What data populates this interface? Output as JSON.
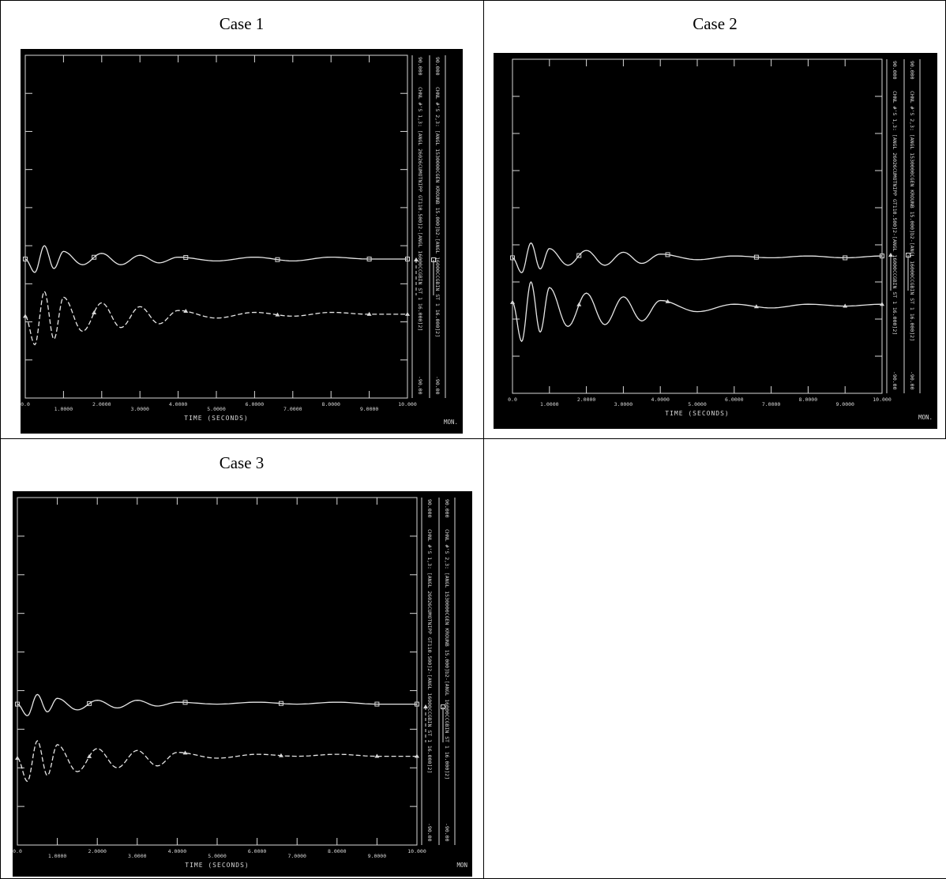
{
  "cases": [
    {
      "caption": "Case 1"
    },
    {
      "caption": "Case 2"
    },
    {
      "caption": "Case 3"
    }
  ],
  "chart_data": [
    {
      "type": "line",
      "title": "Case 1",
      "xlabel": "TIME (SECONDS)",
      "xlim": [
        0,
        10
      ],
      "x_ticks": [
        "0.0",
        "1.0000",
        "2.0000",
        "3.0000",
        "4.0000",
        "5.0000",
        "6.0000",
        "7.0000",
        "8.0000",
        "9.0000",
        "10.000"
      ],
      "ylim": [
        -90,
        90
      ],
      "y_max_label": "90.000",
      "y_min_label": "-90.00",
      "corner_label": "MON.",
      "grid": false,
      "series": [
        {
          "name": "CHNL #'S 2,3: [ANGL 1530000CGEN KROUNB 15.000]b2-[ANGL 16000CCGBIN ST 1 16.000]2]",
          "style": "solid",
          "marker": "square",
          "x": [
            0,
            0.25,
            0.5,
            0.75,
            1,
            1.5,
            2,
            2.5,
            3,
            3.5,
            4,
            5,
            6,
            7,
            8,
            9,
            10
          ],
          "y": [
            -17,
            -24,
            -10,
            -22,
            -13,
            -20,
            -14,
            -20,
            -15,
            -19,
            -16,
            -18,
            -16,
            -18,
            -16,
            -17,
            -17
          ]
        },
        {
          "name": "CHNL #'S 1,3: [ANGL 26026CUMOTNIPP GT110.500]2-[ANGL 16000CCGBIN ST 1 16.000]2]",
          "style": "dashed",
          "marker": "triangle",
          "x": [
            0,
            0.25,
            0.5,
            0.75,
            1,
            1.5,
            2,
            2.5,
            3,
            3.5,
            4,
            5,
            6,
            7,
            8,
            9,
            10
          ],
          "y": [
            -47,
            -62,
            -34,
            -59,
            -37,
            -55,
            -40,
            -53,
            -42,
            -51,
            -44,
            -48,
            -45,
            -47,
            -45,
            -46,
            -46
          ]
        }
      ]
    },
    {
      "type": "line",
      "title": "Case 2",
      "xlabel": "TIME (SECONDS)",
      "xlim": [
        0,
        10
      ],
      "x_ticks": [
        "0.0",
        "1.0000",
        "2.0000",
        "3.0000",
        "4.0000",
        "5.0000",
        "6.0000",
        "7.0000",
        "8.0000",
        "9.0000",
        "10.000"
      ],
      "ylim": [
        -90,
        90
      ],
      "y_max_label": "90.000",
      "y_min_label": "-90.00",
      "corner_label": "MON.",
      "grid": false,
      "series": [
        {
          "name": "CHNL #'S 2,3: [ANGL 1530000CGEN KROUNB 15.000]b2-[ANGL 16000CCGBIN ST 1 16.000]2]",
          "style": "solid",
          "marker": "square",
          "x": [
            0,
            0.25,
            0.5,
            0.75,
            1,
            1.5,
            2,
            2.5,
            3,
            3.5,
            4,
            5,
            6,
            7,
            8,
            9,
            10
          ],
          "y": [
            -17,
            -25,
            -9,
            -23,
            -12,
            -21,
            -13,
            -21,
            -14,
            -20,
            -15,
            -18,
            -16,
            -17,
            -16,
            -17,
            -16
          ]
        },
        {
          "name": "CHNL #'S 1,3: [ANGL 26026CUMOTNIPP GT110.500]2-[ANGL 16000CCGBIN ST 1 16.000]2]",
          "style": "solid",
          "marker": "triangle",
          "x": [
            0,
            0.25,
            0.5,
            0.75,
            1,
            1.5,
            2,
            2.5,
            3,
            3.5,
            4,
            5,
            6,
            7,
            8,
            9,
            10
          ],
          "y": [
            -41,
            -62,
            -30,
            -57,
            -33,
            -54,
            -36,
            -53,
            -38,
            -51,
            -40,
            -46,
            -42,
            -44,
            -42,
            -43,
            -42
          ]
        }
      ]
    },
    {
      "type": "line",
      "title": "Case 3",
      "xlabel": "TIME (SECONDS)",
      "xlim": [
        0,
        10
      ],
      "x_ticks": [
        "0.0",
        "1.0000",
        "2.0000",
        "3.0000",
        "4.0000",
        "5.0000",
        "6.0000",
        "7.0000",
        "8.0000",
        "9.0000",
        "10.000"
      ],
      "ylim": [
        -90,
        90
      ],
      "y_max_label": "90.000",
      "y_min_label": "-90.00",
      "corner_label": "MON",
      "grid": false,
      "series": [
        {
          "name": "CHNL #'S 2,3: [ANGL 1530000CGEN KROUNB 15.000]b2-[ANGL 16000CCGBIN ST 1 16.000]2]",
          "style": "solid",
          "marker": "square",
          "x": [
            0,
            0.25,
            0.5,
            0.75,
            1,
            1.5,
            2,
            2.5,
            3,
            3.5,
            4,
            5,
            6,
            7,
            8,
            9,
            10
          ],
          "y": [
            -17,
            -23,
            -12,
            -21,
            -14,
            -20,
            -15,
            -19,
            -15,
            -18,
            -16,
            -17,
            -16,
            -17,
            -16,
            -17,
            -17
          ]
        },
        {
          "name": "CHNL #'S 1,3: [ANGL 26026CUMOTNIPP GT110.500]2-[ANGL 16000CCGBIN ST 1 16.000]2]",
          "style": "dashed",
          "marker": "triangle",
          "x": [
            0,
            0.25,
            0.5,
            0.75,
            1,
            1.5,
            2,
            2.5,
            3,
            3.5,
            4,
            5,
            6,
            7,
            8,
            9,
            10
          ],
          "y": [
            -45,
            -57,
            -36,
            -54,
            -38,
            -52,
            -40,
            -50,
            -41,
            -49,
            -42,
            -45,
            -43,
            -44,
            -43,
            -44,
            -44
          ]
        }
      ]
    }
  ]
}
